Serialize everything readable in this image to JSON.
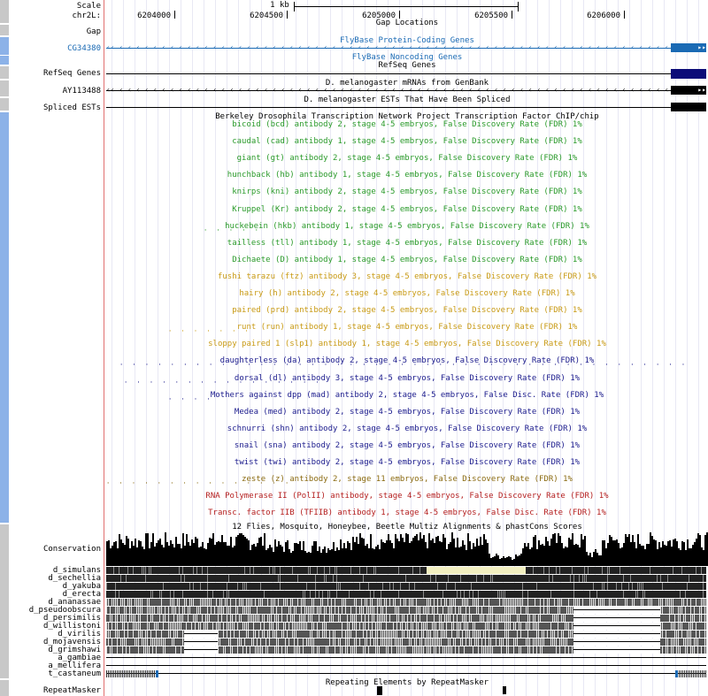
{
  "scale": {
    "label": "Scale",
    "value": "1 kb"
  },
  "position": {
    "chrom": "chr2L:",
    "ticks": [
      "6204000",
      "6204500",
      "6205000",
      "6205500",
      "6206000"
    ]
  },
  "tracks": {
    "gap": {
      "title": "Gap Locations",
      "label": "Gap"
    },
    "flybase_coding": {
      "title": "FlyBase Protein-Coding Genes",
      "label": "CG34380"
    },
    "flybase_noncoding": {
      "title": "FlyBase Noncoding Genes"
    },
    "refseq": {
      "title": "RefSeq Genes",
      "label": "RefSeq Genes"
    },
    "mrna": {
      "title": "D. melanogaster mRNAs from GenBank",
      "label": "AY113488"
    },
    "spliced_est": {
      "title": "D. melanogaster ESTs That Have Been Spliced",
      "label": "Spliced ESTs"
    },
    "bdtnp": {
      "title": "Berkeley Drosophila Transcription Network Project Transcription Factor ChIP/chip"
    },
    "conservation": {
      "title": "12 Flies, Mosquito, Honeybee, Beetle Multiz Alignments & phastCons Scores",
      "label": "Conservation"
    },
    "repeatmasker": {
      "title": "Repeating Elements by RepeatMasker",
      "label": "RepeatMasker"
    }
  },
  "chip_tracks": [
    {
      "text": "bicoid (bcd) antibody 2, stage 4-5 embryos, False Discovery Rate (FDR) 1%",
      "color": "#2a9a2a"
    },
    {
      "text": "caudal (cad) antibody 1, stage 4-5 embryos, False Discovery Rate (FDR) 1%",
      "color": "#2a9a2a"
    },
    {
      "text": "giant (gt) antibody 2, stage 4-5 embryos, False Discovery Rate (FDR) 1%",
      "color": "#2a9a2a"
    },
    {
      "text": "hunchback (hb) antibody 1, stage 4-5 embryos, False Discovery Rate (FDR) 1%",
      "color": "#2a9a2a"
    },
    {
      "text": "knirps (kni) antibody 2, stage 4-5 embryos, False Discovery Rate (FDR) 1%",
      "color": "#2a9a2a"
    },
    {
      "text": "Kruppel (Kr) antibody 2, stage 4-5 embryos, False Discovery Rate (FDR) 1%",
      "color": "#2a9a2a"
    },
    {
      "text": "huckebein (hkb) antibody 1, stage 4-5 embryos, False Discovery Rate (FDR) 1%",
      "color": "#2a9a2a"
    },
    {
      "text": "tailless (tll) antibody 1, stage 4-5 embryos, False Discovery Rate (FDR) 1%",
      "color": "#2a9a2a"
    },
    {
      "text": "Dichaete (D) antibody 1, stage 4-5 embryos, False Discovery Rate (FDR) 1%",
      "color": "#2a9a2a"
    },
    {
      "text": "fushi tarazu (ftz) antibody 3, stage 4-5 embryos, False Discovery Rate (FDR) 1%",
      "color": "#c89a14"
    },
    {
      "text": "hairy (h) antibody 2, stage 4-5 embryos, False Discovery Rate (FDR) 1%",
      "color": "#c89a14"
    },
    {
      "text": "paired (prd) antibody 2, stage 4-5 embryos, False Discovery Rate (FDR) 1%",
      "color": "#c89a14"
    },
    {
      "text": "runt (run) antibody 1, stage 4-5 embryos, False Discovery Rate (FDR) 1%",
      "color": "#c89a14"
    },
    {
      "text": "sloppy paired 1 (slp1) antibody 1, stage 4-5 embryos, False Discovery Rate (FDR) 1%",
      "color": "#c89a14"
    },
    {
      "text": "daughterless (da) antibody 2, stage 4-5 embryos, False Discovery Rate (FDR) 1%",
      "color": "#1a1a8c"
    },
    {
      "text": "dorsal (dl) antibody 3, stage 4-5 embryos, False Discovery Rate (FDR) 1%",
      "color": "#1a1a8c"
    },
    {
      "text": "Mothers against dpp (mad) antibody 2, stage 4-5 embryos, False Disc. Rate (FDR) 1%",
      "color": "#1a1a8c"
    },
    {
      "text": "Medea (med) antibody 2, stage 4-5 embryos, False Discovery Rate (FDR) 1%",
      "color": "#1a1a8c"
    },
    {
      "text": "schnurri (shn) antibody 2, stage 4-5 embryos, False Discovery Rate (FDR) 1%",
      "color": "#1a1a8c"
    },
    {
      "text": "snail (sna) antibody 2, stage 4-5 embryos, False Discovery Rate (FDR) 1%",
      "color": "#1a1a8c"
    },
    {
      "text": "twist (twi) antibody 2, stage 4-5 embryos, False Discovery Rate (FDR) 1%",
      "color": "#1a1a8c"
    },
    {
      "text": "zeste (z) antibody 2, stage 11 embryos, False Discovery Rate (FDR) 1%",
      "color": "#8a6a10"
    },
    {
      "text": "RNA Polymerase II (PolII) antibody, stage 4-5 embryos, False Discovery Rate (FDR) 1%",
      "color": "#b41e1e"
    },
    {
      "text": "Transc. factor IIB (TFIIB) antibody 1, stage 4-5 embryos, False Disc. Rate (FDR) 1%",
      "color": "#b41e1e"
    }
  ],
  "species": [
    "d_simulans",
    "d_sechellia",
    "d_yakuba",
    "d_erecta",
    "d_ananassae",
    "d_pseudoobscura",
    "d_persimilis",
    "d_willistoni",
    "d_virilis",
    "d_mojavensis",
    "d_grimshawi",
    "a_gambiae",
    "a_mellifera",
    "t_castaneum"
  ],
  "colors": {
    "gene_blue": "#1a6ab4",
    "refseq_navy": "#0c0c78",
    "grid_line": "#e8e8f4",
    "red_line": "#e07070",
    "button_gray": "#c8c8c8",
    "button_blue": "#8cb2e8",
    "highlight": "#f2efc0"
  }
}
